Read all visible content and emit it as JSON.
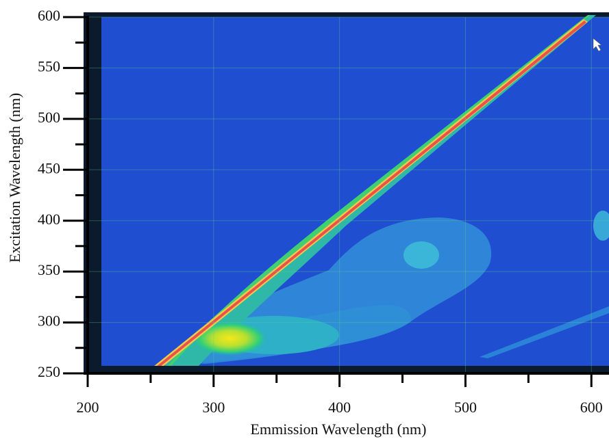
{
  "chart_data": {
    "type": "contour",
    "xlabel": "Emmission  Wavelength (nm)",
    "ylabel": "Excitation Wavelength (nm)",
    "xlim": [
      200,
      614
    ],
    "ylim": [
      250,
      600
    ],
    "xticks": [
      200,
      300,
      400,
      500,
      600
    ],
    "yticks": [
      250,
      300,
      350,
      400,
      450,
      500,
      550,
      600
    ],
    "xminorticks": [
      250,
      350,
      450,
      550
    ],
    "yminorticks": [
      275,
      325,
      375,
      425,
      475,
      525,
      575
    ],
    "grid": true
  }
}
